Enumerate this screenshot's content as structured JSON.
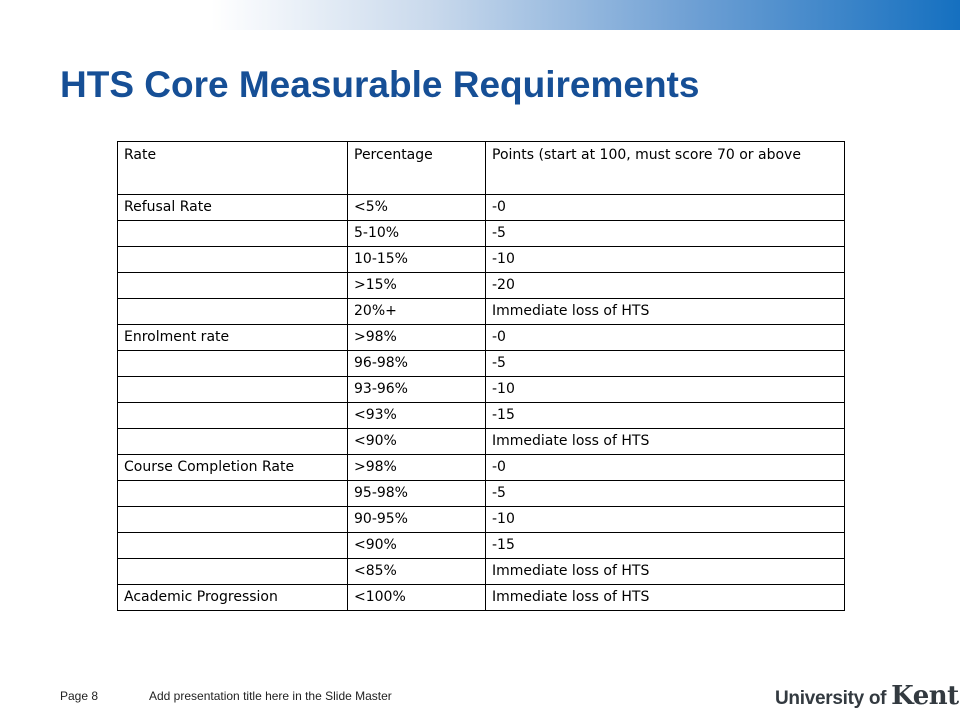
{
  "slide": {
    "title": "HTS Core Measurable Requirements"
  },
  "table": {
    "columns": [
      "Rate",
      "Percentage",
      "Points (start at 100, must score 70 or above"
    ],
    "rows": [
      [
        "Refusal Rate",
        "<5%",
        "-0"
      ],
      [
        "",
        "5-10%",
        "-5"
      ],
      [
        "",
        "10-15%",
        "-10"
      ],
      [
        "",
        ">15%",
        "-20"
      ],
      [
        "",
        "20%+",
        "Immediate loss of HTS"
      ],
      [
        "Enrolment rate",
        ">98%",
        "-0"
      ],
      [
        "",
        "96-98%",
        "-5"
      ],
      [
        "",
        "93-96%",
        "-10"
      ],
      [
        "",
        "<93%",
        "-15"
      ],
      [
        "",
        "<90%",
        "Immediate loss of HTS"
      ],
      [
        "Course Completion Rate",
        ">98%",
        "-0"
      ],
      [
        "",
        "95-98%",
        "-5"
      ],
      [
        "",
        "90-95%",
        "-10"
      ],
      [
        "",
        "<90%",
        "-15"
      ],
      [
        "",
        "<85%",
        "Immediate loss of HTS"
      ],
      [
        "Academic Progression",
        "<100%",
        "Immediate loss of HTS"
      ]
    ]
  },
  "footer": {
    "page_label": "Page 8",
    "presentation_title": "Add presentation title here in the Slide Master"
  },
  "logo": {
    "prefix": "University of ",
    "name": "Kent"
  },
  "colors": {
    "title": "#164f96",
    "bar_end": "#1570c0"
  }
}
